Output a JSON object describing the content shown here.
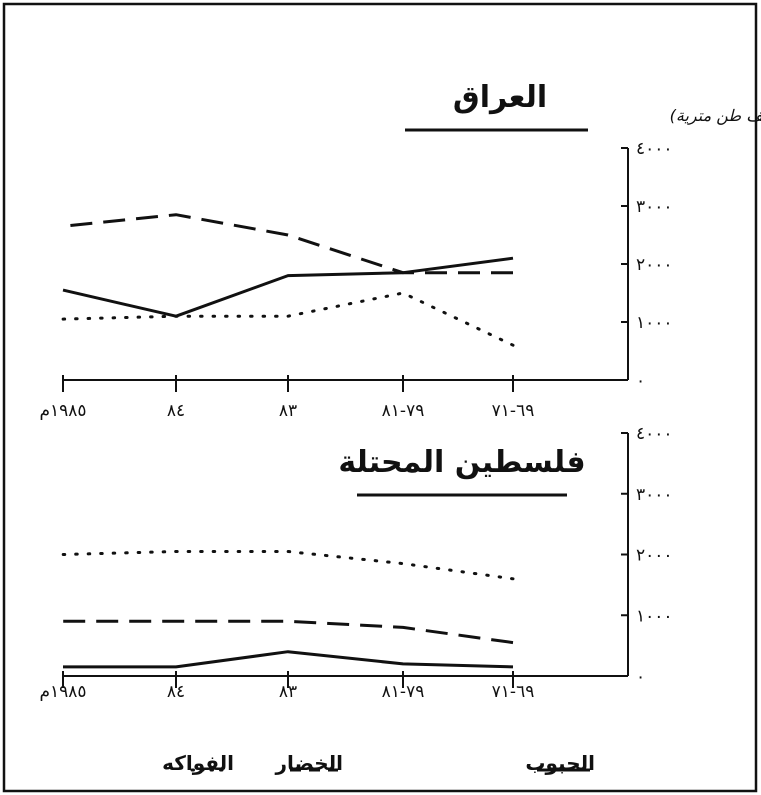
{
  "figure": {
    "unit_label": "(ألف طن مترية)",
    "legend": {
      "grains": "الحبوب",
      "vegetables": "الخضار",
      "fruits": "الفواكه"
    }
  },
  "chart_data": [
    {
      "type": "line",
      "title": "العراق",
      "ylabel": "(ألف طن مترية)",
      "xlabel": "",
      "categories": [
        "٦٩-٧١",
        "٧٩-٨١",
        "٨٣",
        "٨٤",
        "١٩٨٥م"
      ],
      "y_ticks": [
        "٤٠٠٠",
        "٣٠٠٠",
        "٢٠٠٠",
        "١٠٠٠",
        "٠"
      ],
      "y_tick_values": [
        4000,
        3000,
        2000,
        1000,
        0
      ],
      "ylim": [
        0,
        4000
      ],
      "x_axis_direction": "right-to-left",
      "legend_position": "bottom",
      "grid": false,
      "series": [
        {
          "name": "الحبوب",
          "style": "solid",
          "values": [
            2100,
            1850,
            1800,
            1100,
            1550
          ]
        },
        {
          "name": "الخضار",
          "style": "dashed",
          "values": [
            1850,
            1850,
            2500,
            2850,
            2650
          ]
        },
        {
          "name": "الفواكه",
          "style": "dotted",
          "values": [
            600,
            1500,
            1100,
            1100,
            1050
          ]
        }
      ]
    },
    {
      "type": "line",
      "title": "فلسطين المحتلة",
      "ylabel": "",
      "xlabel": "",
      "categories": [
        "٦٩-٧١",
        "٧٩-٨١",
        "٨٣",
        "٨٤",
        "١٩٨٥م"
      ],
      "y_ticks": [
        "٤٠٠٠",
        "٣٠٠٠",
        "٢٠٠٠",
        "١٠٠٠",
        "٠"
      ],
      "y_tick_values": [
        4000,
        3000,
        2000,
        1000,
        0
      ],
      "ylim": [
        0,
        4000
      ],
      "x_axis_direction": "right-to-left",
      "legend_position": "bottom",
      "grid": false,
      "series": [
        {
          "name": "الحبوب",
          "style": "solid",
          "values": [
            150,
            200,
            400,
            150,
            150
          ]
        },
        {
          "name": "الخضار",
          "style": "dashed",
          "values": [
            550,
            800,
            900,
            900,
            900
          ]
        },
        {
          "name": "الفواكه",
          "style": "dotted",
          "values": [
            1600,
            1850,
            2050,
            2050,
            2000
          ]
        }
      ]
    }
  ]
}
